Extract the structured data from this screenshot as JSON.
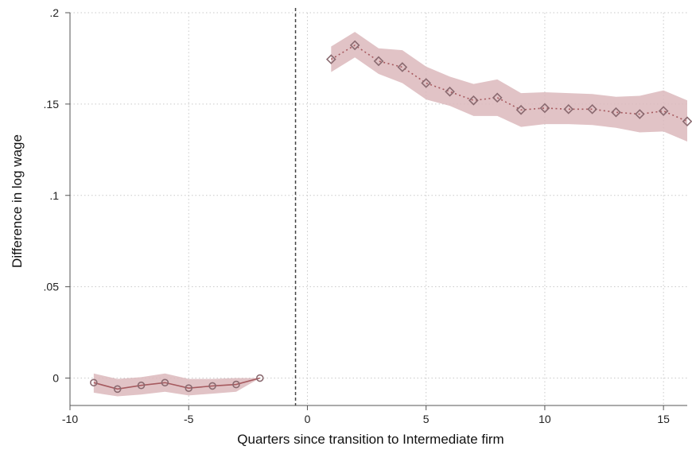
{
  "chart_data": {
    "type": "line",
    "title": "",
    "xlabel": "Quarters since transition to Intermediate firm",
    "ylabel": "Difference in log wage",
    "xlim": [
      -10,
      16
    ],
    "ylim": [
      -0.015,
      0.2
    ],
    "x_ticks": [
      -10,
      -5,
      0,
      5,
      10,
      15
    ],
    "x_tick_labels": [
      "-10",
      "-5",
      "0",
      "5",
      "10",
      "15"
    ],
    "y_ticks": [
      0,
      0.05,
      0.1,
      0.15,
      0.2
    ],
    "y_tick_labels": [
      "0",
      ".05",
      ".1",
      ".15",
      ".2"
    ],
    "grid": true,
    "reference_line_x": -0.5,
    "colors": {
      "line": "#a65a5f",
      "band": "#dcb8bc",
      "marker": "#8a6a70",
      "grid": "#c9c9c9"
    },
    "series": [
      {
        "marker": "circle",
        "line_style": "solid",
        "x": [
          -9,
          -8,
          -7,
          -6,
          -5,
          -4,
          -3,
          -2
        ],
        "values": [
          -0.0025,
          -0.006,
          -0.004,
          -0.0025,
          -0.0055,
          -0.0043,
          -0.0035,
          0.0
        ],
        "ci_low": [
          -0.008,
          -0.01,
          -0.009,
          -0.0075,
          -0.0095,
          -0.0085,
          -0.0075,
          0.0
        ],
        "ci_high": [
          0.0025,
          -0.0005,
          0.0005,
          0.0025,
          -0.0005,
          -0.0005,
          0.0,
          0.0
        ]
      },
      {
        "marker": "diamond",
        "line_style": "dotted",
        "x": [
          1,
          2,
          3,
          4,
          5,
          6,
          7,
          8,
          9,
          10,
          11,
          12,
          13,
          14,
          15,
          16
        ],
        "values": [
          0.1745,
          0.1822,
          0.1735,
          0.1702,
          0.1615,
          0.1568,
          0.152,
          0.1535,
          0.1468,
          0.1478,
          0.1472,
          0.1472,
          0.1455,
          0.1445,
          0.1462,
          0.1405
        ],
        "ci_low": [
          0.1675,
          0.1755,
          0.1665,
          0.1615,
          0.1525,
          0.149,
          0.1435,
          0.1435,
          0.1375,
          0.139,
          0.139,
          0.1385,
          0.137,
          0.1345,
          0.135,
          0.1295
        ],
        "ci_high": [
          0.1815,
          0.1895,
          0.1805,
          0.1795,
          0.1705,
          0.165,
          0.161,
          0.1635,
          0.156,
          0.1565,
          0.156,
          0.1555,
          0.154,
          0.1545,
          0.1575,
          0.152
        ]
      }
    ]
  }
}
